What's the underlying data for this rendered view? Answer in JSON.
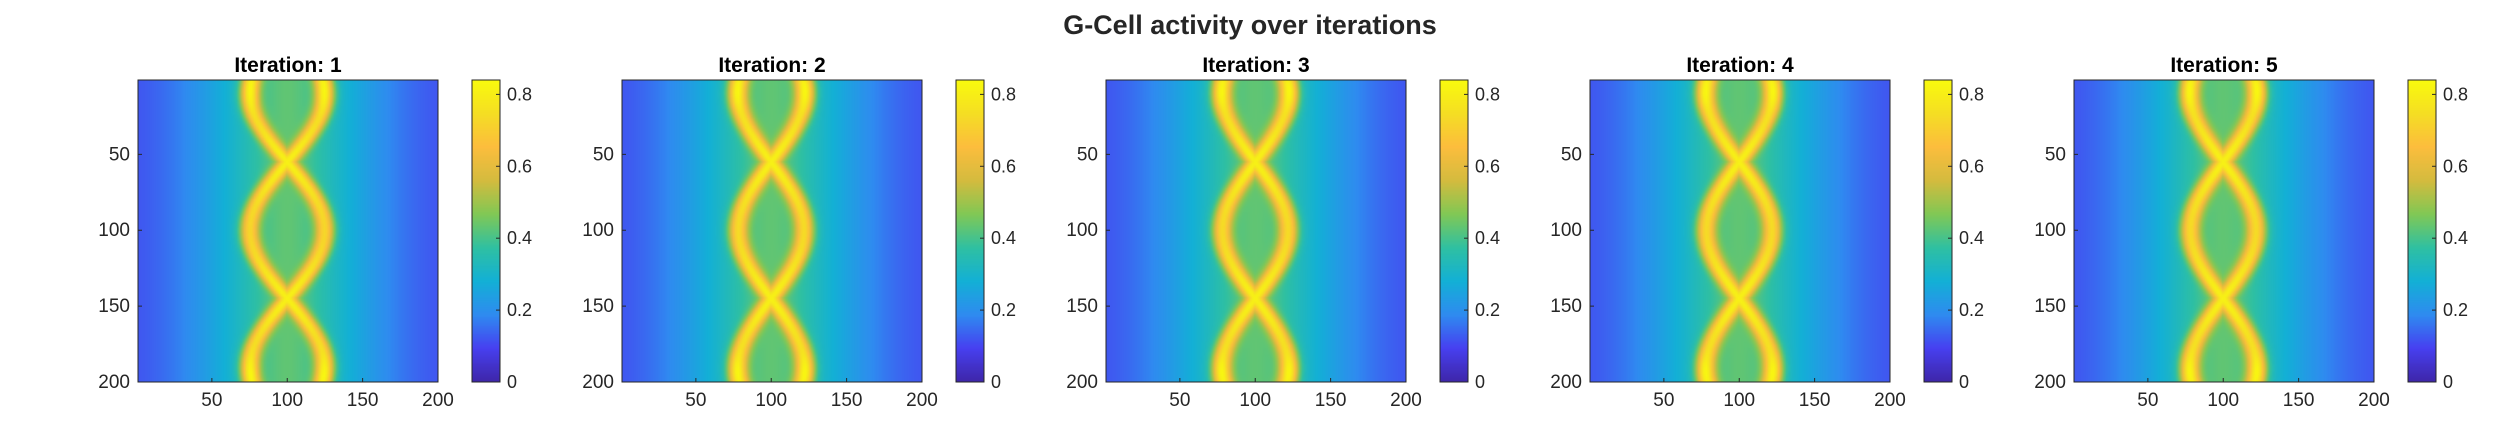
{
  "figure": {
    "title": "G-Cell activity over iterations"
  },
  "colormap": {
    "name": "parula",
    "stops": [
      "#3e26a8",
      "#4740f0",
      "#2f8bf0",
      "#13b0d6",
      "#2fc0a2",
      "#81c855",
      "#d4bb3e",
      "#fcbd3d",
      "#f5de24",
      "#f9fb0e"
    ]
  },
  "chart_data": [
    {
      "type": "heatmap",
      "title": "Iteration: 1",
      "xlim": [
        1,
        200
      ],
      "ylim": [
        1,
        200
      ],
      "y_direction": "reverse",
      "xticks": [
        50,
        100,
        150,
        200
      ],
      "yticks": [
        50,
        100,
        150,
        200
      ],
      "colorbar": {
        "min": 0,
        "max": 0.84,
        "ticks": [
          0,
          0.2,
          0.4,
          0.6,
          0.8
        ],
        "tick_labels": [
          "0",
          "0.2",
          "0.4",
          "0.6",
          "0.8"
        ]
      },
      "ridge_amplitude": 25,
      "center_x": 100,
      "peak_value": 0.84
    },
    {
      "type": "heatmap",
      "title": "Iteration: 2",
      "xlim": [
        1,
        200
      ],
      "ylim": [
        1,
        200
      ],
      "y_direction": "reverse",
      "xticks": [
        50,
        100,
        150,
        200
      ],
      "yticks": [
        50,
        100,
        150,
        200
      ],
      "colorbar": {
        "min": 0,
        "max": 0.84,
        "ticks": [
          0,
          0.2,
          0.4,
          0.6,
          0.8
        ],
        "tick_labels": [
          "0",
          "0.2",
          "0.4",
          "0.6",
          "0.8"
        ]
      },
      "ridge_amplitude": 22,
      "center_x": 100,
      "peak_value": 0.84
    },
    {
      "type": "heatmap",
      "title": "Iteration: 3",
      "xlim": [
        1,
        200
      ],
      "ylim": [
        1,
        200
      ],
      "y_direction": "reverse",
      "xticks": [
        50,
        100,
        150,
        200
      ],
      "yticks": [
        50,
        100,
        150,
        200
      ],
      "colorbar": {
        "min": 0,
        "max": 0.84,
        "ticks": [
          0,
          0.2,
          0.4,
          0.6,
          0.8
        ],
        "tick_labels": [
          "0",
          "0.2",
          "0.4",
          "0.6",
          "0.8"
        ]
      },
      "ridge_amplitude": 22,
      "center_x": 100,
      "peak_value": 0.84
    },
    {
      "type": "heatmap",
      "title": "Iteration: 4",
      "xlim": [
        1,
        200
      ],
      "ylim": [
        1,
        200
      ],
      "y_direction": "reverse",
      "xticks": [
        50,
        100,
        150,
        200
      ],
      "yticks": [
        50,
        100,
        150,
        200
      ],
      "colorbar": {
        "min": 0,
        "max": 0.84,
        "ticks": [
          0,
          0.2,
          0.4,
          0.6,
          0.8
        ],
        "tick_labels": [
          "0",
          "0.2",
          "0.4",
          "0.6",
          "0.8"
        ]
      },
      "ridge_amplitude": 22,
      "center_x": 100,
      "peak_value": 0.84
    },
    {
      "type": "heatmap",
      "title": "Iteration: 5",
      "xlim": [
        1,
        200
      ],
      "ylim": [
        1,
        200
      ],
      "y_direction": "reverse",
      "xticks": [
        50,
        100,
        150,
        200
      ],
      "yticks": [
        50,
        100,
        150,
        200
      ],
      "colorbar": {
        "min": 0,
        "max": 0.84,
        "ticks": [
          0,
          0.2,
          0.4,
          0.6,
          0.8
        ],
        "tick_labels": [
          "0",
          "0.2",
          "0.4",
          "0.6",
          "0.8"
        ]
      },
      "ridge_amplitude": 22,
      "center_x": 100,
      "peak_value": 0.84
    }
  ]
}
